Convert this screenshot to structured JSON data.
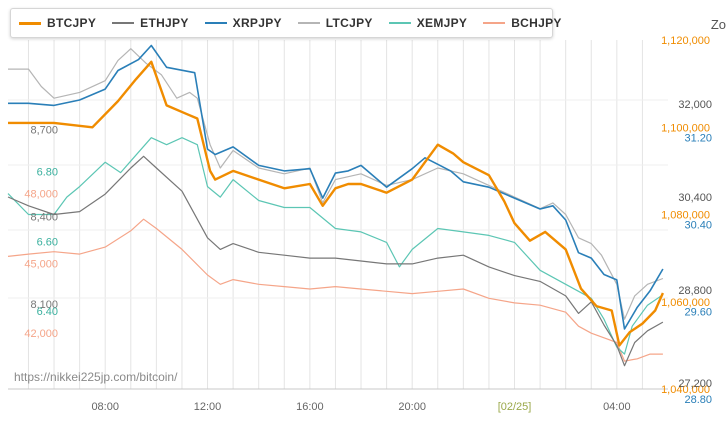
{
  "legend_items": [
    {
      "label": "BTCJPY",
      "color": "#f08c00"
    },
    {
      "label": "ETHJPY",
      "color": "#777777"
    },
    {
      "label": "XRPJPY",
      "color": "#2a7fb8"
    },
    {
      "label": "LTCJPY",
      "color": "#b5b5b5"
    },
    {
      "label": "XEMJPY",
      "color": "#5cc6b4"
    },
    {
      "label": "BCHJPY",
      "color": "#f5a589"
    }
  ],
  "zoom_label": "Zo",
  "watermark": "https://nikkei225jp.com/bitcoin/",
  "chart_data": {
    "type": "line",
    "x_ticks": [
      {
        "label": "08:00",
        "x_hours": 8
      },
      {
        "label": "12:00",
        "x_hours": 12
      },
      {
        "label": "16:00",
        "x_hours": 16
      },
      {
        "label": "20:00",
        "x_hours": 20
      },
      {
        "label": "[02/25]",
        "x_hours": 24
      },
      {
        "label": "04:00",
        "x_hours": 28
      }
    ],
    "x_range_hours": [
      4.2,
      30
    ],
    "y_axes": [
      {
        "series": "BTCJPY",
        "color": "#f08c00",
        "min": 1040000,
        "max": 1120000,
        "ticks": [
          {
            "label": "1,120,000",
            "v": 1120000
          },
          {
            "label": "1,100,000",
            "v": 1100000
          },
          {
            "label": "1,080,000",
            "v": 1080000
          },
          {
            "label": "1,060,000",
            "v": 1060000
          },
          {
            "label": "1,040,000",
            "v": 1040000
          }
        ]
      },
      {
        "series": "ETHJPY",
        "color": "#777777",
        "min": 7800,
        "max": 9000,
        "ticks": [
          {
            "label": "8,700",
            "v": 8700
          },
          {
            "label": "8,400",
            "v": 8400
          },
          {
            "label": "8,100",
            "v": 8100
          }
        ]
      },
      {
        "series": "XRPJPY",
        "color": "#2a7fb8",
        "min": 28.8,
        "max": 32.0,
        "ticks": [
          {
            "label": "31.20",
            "v": 31.2
          },
          {
            "label": "30.40",
            "v": 30.4
          },
          {
            "label": "29.60",
            "v": 29.6
          },
          {
            "label": "28.80",
            "v": 28.8
          }
        ]
      },
      {
        "series": "LTCJPY",
        "color": "#555555",
        "min": 27200,
        "max": 33200,
        "ticks": [
          {
            "label": "32,000",
            "v": 32000
          },
          {
            "label": "30,400",
            "v": 30400
          },
          {
            "label": "28,800",
            "v": 28800
          },
          {
            "label": "27,200",
            "v": 27200
          }
        ]
      },
      {
        "series": "XEMJPY",
        "color": "#3ab09e",
        "min": 6.2,
        "max": 7.2,
        "ticks": [
          {
            "label": "6.80",
            "v": 6.8
          },
          {
            "label": "6.60",
            "v": 6.6
          },
          {
            "label": "6.40",
            "v": 6.4
          }
        ]
      },
      {
        "series": "BCHJPY",
        "color": "#f5a589",
        "min": 39000,
        "max": 54000,
        "ticks": [
          {
            "label": "48,000",
            "v": 48000
          },
          {
            "label": "45,000",
            "v": 45000
          },
          {
            "label": "42,000",
            "v": 42000
          }
        ]
      }
    ],
    "series": [
      {
        "name": "BTCJPY",
        "color": "#f08c00",
        "x": [
          4.2,
          6,
          7.5,
          8.5,
          9.2,
          9.8,
          10.4,
          11.2,
          11.6,
          12.1,
          12.3,
          13,
          14,
          15,
          16,
          16.5,
          17,
          17.5,
          18,
          19,
          20,
          21,
          21.6,
          22,
          23,
          23.6,
          24,
          24.6,
          25.2,
          26,
          26.6,
          27.2,
          27.8,
          28.1,
          28.5,
          29,
          29.5,
          29.8
        ],
        "values": [
          1101000,
          1101000,
          1100000,
          1106000,
          1111000,
          1115000,
          1105000,
          1103000,
          1102000,
          1090000,
          1088000,
          1090000,
          1088000,
          1086000,
          1087000,
          1082000,
          1086000,
          1087000,
          1087000,
          1085000,
          1088000,
          1096000,
          1094000,
          1092000,
          1089000,
          1083000,
          1078000,
          1074000,
          1076000,
          1072000,
          1063000,
          1059000,
          1058000,
          1050000,
          1053000,
          1055000,
          1058000,
          1062000
        ]
      },
      {
        "name": "ETHJPY",
        "color": "#777777",
        "x": [
          4.2,
          5,
          6,
          7,
          8,
          9,
          9.5,
          10,
          11,
          12,
          12.5,
          13,
          14,
          15,
          16,
          17,
          18,
          19,
          20,
          21,
          22,
          23,
          24,
          25,
          26,
          26.5,
          27,
          27.5,
          28,
          28.3,
          28.7,
          29.2,
          29.8
        ],
        "values": [
          8460,
          8430,
          8400,
          8410,
          8470,
          8560,
          8600,
          8560,
          8480,
          8320,
          8280,
          8300,
          8270,
          8260,
          8250,
          8250,
          8240,
          8230,
          8230,
          8250,
          8260,
          8220,
          8190,
          8170,
          8120,
          8060,
          8100,
          8020,
          7950,
          7880,
          7960,
          8000,
          8030
        ]
      },
      {
        "name": "XRPJPY",
        "color": "#2a7fb8",
        "x": [
          4.2,
          5,
          6,
          7,
          8,
          8.5,
          9.3,
          9.8,
          10.4,
          11.5,
          12,
          12.3,
          13,
          14,
          15,
          16,
          16.5,
          17,
          17.5,
          18,
          19,
          20,
          20.5,
          21,
          21.5,
          22,
          23,
          24,
          25,
          25.5,
          26,
          26.5,
          27,
          27.5,
          28,
          28.3,
          28.8,
          29.3,
          29.8
        ],
        "values": [
          31.42,
          31.42,
          31.4,
          31.45,
          31.55,
          31.72,
          31.82,
          31.95,
          31.75,
          31.7,
          31.0,
          30.95,
          31.02,
          30.85,
          30.8,
          30.82,
          30.55,
          30.78,
          30.8,
          30.85,
          30.65,
          30.82,
          30.92,
          30.86,
          30.8,
          30.7,
          30.65,
          30.55,
          30.45,
          30.48,
          30.35,
          30.05,
          30.0,
          29.85,
          29.8,
          29.35,
          29.55,
          29.7,
          29.9
        ]
      },
      {
        "name": "LTCJPY",
        "color": "#b5b5b5",
        "x": [
          4.2,
          5,
          5.5,
          6,
          7,
          8,
          8.5,
          9,
          9.6,
          10.2,
          10.8,
          11.3,
          11.6,
          12.1,
          12.5,
          13,
          14,
          15,
          16,
          16.5,
          17,
          18,
          19,
          20,
          21,
          22,
          23,
          24,
          25,
          25.5,
          26,
          26.5,
          27,
          27.4,
          28,
          28.3,
          28.7,
          29.2,
          29.8
        ],
        "values": [
          32700,
          32700,
          32400,
          32200,
          32300,
          32500,
          32850,
          33050,
          32800,
          32600,
          32200,
          32300,
          32200,
          31400,
          31000,
          31300,
          31000,
          30900,
          31000,
          30400,
          30800,
          30900,
          30700,
          30800,
          31000,
          30900,
          30700,
          30500,
          30300,
          30400,
          30200,
          29800,
          29700,
          29500,
          29000,
          28400,
          28800,
          29000,
          29100
        ]
      },
      {
        "name": "XEMJPY",
        "color": "#5cc6b4",
        "x": [
          4.2,
          5,
          6,
          6.5,
          7,
          8,
          8.6,
          9.2,
          9.8,
          10.4,
          11,
          11.6,
          12,
          12.5,
          13,
          14,
          15,
          16,
          17,
          18,
          19,
          19.5,
          20,
          21,
          22,
          23,
          24,
          25,
          26,
          27,
          27.5,
          28,
          28.3,
          28.6,
          29.2,
          29.8
        ],
        "values": [
          6.76,
          6.7,
          6.7,
          6.75,
          6.78,
          6.85,
          6.82,
          6.87,
          6.92,
          6.9,
          6.92,
          6.9,
          6.78,
          6.75,
          6.8,
          6.74,
          6.72,
          6.72,
          6.66,
          6.65,
          6.62,
          6.55,
          6.6,
          6.66,
          6.65,
          6.64,
          6.62,
          6.54,
          6.5,
          6.46,
          6.4,
          6.32,
          6.3,
          6.38,
          6.44,
          6.47
        ]
      },
      {
        "name": "BCHJPY",
        "color": "#f5a589",
        "x": [
          4.2,
          5,
          6,
          7,
          8,
          9,
          9.5,
          10,
          11,
          12,
          12.5,
          13,
          14,
          15,
          16,
          17,
          18,
          19,
          20,
          21,
          22,
          23,
          24,
          25,
          26,
          26.5,
          27,
          27.5,
          28,
          28.3,
          28.8,
          29.3,
          29.8
        ],
        "values": [
          44700,
          44800,
          44900,
          44800,
          45100,
          45800,
          46300,
          45900,
          45000,
          43900,
          43500,
          43700,
          43500,
          43400,
          43300,
          43400,
          43300,
          43200,
          43100,
          43200,
          43300,
          42900,
          42700,
          42600,
          42300,
          41700,
          41400,
          41200,
          41000,
          40200,
          40300,
          40500,
          40500
        ]
      }
    ]
  }
}
